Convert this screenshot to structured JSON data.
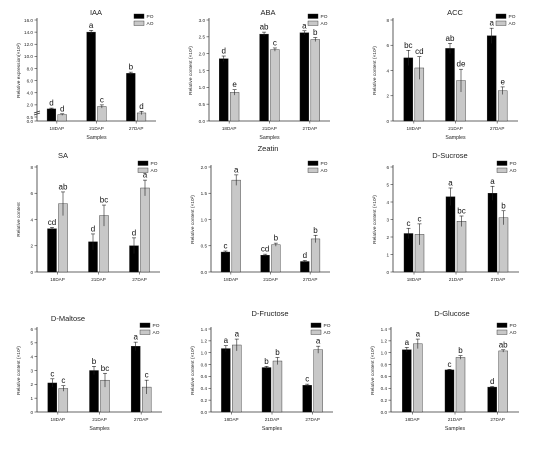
{
  "figure": {
    "series_names": [
      "PO",
      "AO"
    ],
    "series_colors": [
      "#000000",
      "#c8c8c8"
    ],
    "categories": [
      "18DAP",
      "21DAP",
      "27DAP"
    ]
  },
  "chart_data": [
    {
      "type": "bar",
      "title": "IAA",
      "xlabel": "Samples",
      "ylabel": "Relative expression(×10²)",
      "categories": [
        "18DAP",
        "21DAP",
        "27DAP"
      ],
      "yticks": [
        "0.0",
        "0.5",
        "2.0",
        "4.0",
        "6.0",
        "8.0",
        "10.0",
        "12.0",
        "14.0",
        "16.0"
      ],
      "tick_values": [
        0,
        0.5,
        2,
        4,
        6,
        8,
        10,
        12,
        14,
        16
      ],
      "axis_break": true,
      "ylim": [
        0,
        16
      ],
      "legend": "top-right",
      "series": [
        {
          "name": "PO",
          "values": [
            1.5,
            14.0,
            7.2
          ],
          "errors": [
            0.1,
            0.3,
            0.2
          ],
          "letters": [
            "d",
            "a",
            "b"
          ]
        },
        {
          "name": "AO",
          "values": [
            0.8,
            1.8,
            1.0
          ],
          "errors": [
            0.1,
            0.2,
            0.2
          ],
          "letters": [
            "d",
            "c",
            "d"
          ]
        }
      ]
    },
    {
      "type": "bar",
      "title": "ABA",
      "xlabel": "Samples",
      "ylabel": "Relative content (×10²)",
      "categories": [
        "18DAP",
        "21DAP",
        "27DAP"
      ],
      "yticks": [
        "0.0",
        "0.5",
        "1.0",
        "1.5",
        "2.0",
        "2.5",
        "3.0"
      ],
      "tick_values": [
        0,
        0.5,
        1,
        1.5,
        2,
        2.5,
        3
      ],
      "ylim": [
        0,
        3
      ],
      "legend": "top-right",
      "series": [
        {
          "name": "PO",
          "values": [
            1.85,
            2.58,
            2.62
          ],
          "errors": [
            0.08,
            0.06,
            0.06
          ],
          "letters": [
            "d",
            "ab",
            "a"
          ]
        },
        {
          "name": "AO",
          "values": [
            0.85,
            2.12,
            2.42
          ],
          "errors": [
            0.08,
            0.05,
            0.06
          ],
          "letters": [
            "e",
            "c",
            "b"
          ]
        }
      ]
    },
    {
      "type": "bar",
      "title": "ACC",
      "xlabel": "Samples",
      "ylabel": "Relative content (×10²)",
      "categories": [
        "18DAP",
        "21DAP",
        "27DAP"
      ],
      "yticks": [
        "0",
        "2",
        "4",
        "6",
        "8"
      ],
      "tick_values": [
        0,
        2,
        4,
        6,
        8
      ],
      "ylim": [
        0,
        8
      ],
      "legend": "top-right",
      "series": [
        {
          "name": "PO",
          "values": [
            5.0,
            5.75,
            6.75
          ],
          "errors": [
            0.6,
            0.4,
            0.6
          ],
          "letters": [
            "bc",
            "ab",
            "a"
          ]
        },
        {
          "name": "AO",
          "values": [
            4.2,
            3.2,
            2.4
          ],
          "errors": [
            0.9,
            0.9,
            0.3
          ],
          "letters": [
            "cd",
            "de",
            "e"
          ]
        }
      ]
    },
    {
      "type": "bar",
      "title": "SA",
      "xlabel": "",
      "ylabel": "Relative content",
      "categories": [
        "18DAP",
        "21DAP",
        "27DAP"
      ],
      "yticks": [
        "0",
        "2",
        "4",
        "6",
        "8"
      ],
      "tick_values": [
        0,
        2,
        4,
        6,
        8
      ],
      "ylim": [
        0,
        8
      ],
      "legend": "top-right",
      "series": [
        {
          "name": "PO",
          "values": [
            3.3,
            2.3,
            2.0
          ],
          "errors": [
            0.1,
            0.6,
            0.6
          ],
          "letters": [
            "cd",
            "d",
            "d"
          ]
        },
        {
          "name": "AO",
          "values": [
            5.2,
            4.3,
            6.4
          ],
          "errors": [
            0.9,
            0.8,
            0.6
          ],
          "letters": [
            "ab",
            "bc",
            "a"
          ]
        }
      ]
    },
    {
      "type": "bar",
      "title": "Zeatin",
      "xlabel": "",
      "ylabel": "Relative content (×10²)",
      "categories": [
        "18DAP",
        "21DAP",
        "27DAP"
      ],
      "yticks": [
        "0.0",
        "0.5",
        "1.0",
        "1.5",
        "2.0"
      ],
      "tick_values": [
        0,
        0.5,
        1,
        1.5,
        2
      ],
      "ylim": [
        0,
        2
      ],
      "legend": "top-right",
      "series": [
        {
          "name": "PO",
          "values": [
            0.38,
            0.32,
            0.2
          ],
          "errors": [
            0.02,
            0.02,
            0.02
          ],
          "letters": [
            "c",
            "cd",
            "d"
          ]
        },
        {
          "name": "AO",
          "values": [
            1.75,
            0.52,
            0.63
          ],
          "errors": [
            0.1,
            0.03,
            0.07
          ],
          "letters": [
            "a",
            "b",
            "b"
          ]
        }
      ]
    },
    {
      "type": "bar",
      "title": "D-Sucrose",
      "xlabel": "",
      "ylabel": "Relative content (×10²)",
      "categories": [
        "18DAP",
        "21DAP",
        "27DAP"
      ],
      "yticks": [
        "0",
        "1",
        "2",
        "3",
        "4",
        "5",
        "6"
      ],
      "tick_values": [
        0,
        1,
        2,
        3,
        4,
        5,
        6
      ],
      "ylim": [
        0,
        6
      ],
      "legend": "top-right",
      "series": [
        {
          "name": "PO",
          "values": [
            2.2,
            4.3,
            4.5
          ],
          "errors": [
            0.3,
            0.5,
            0.4
          ],
          "letters": [
            "c",
            "a",
            "a"
          ]
        },
        {
          "name": "AO",
          "values": [
            2.15,
            2.9,
            3.1
          ],
          "errors": [
            0.6,
            0.3,
            0.4
          ],
          "letters": [
            "c",
            "bc",
            "b"
          ]
        }
      ]
    },
    {
      "type": "bar",
      "title": "D-Maltose",
      "xlabel": "Samples",
      "ylabel": "Relative content (×10²)",
      "categories": [
        "18DAP",
        "21DAP",
        "27DAP"
      ],
      "yticks": [
        "0",
        "1",
        "2",
        "3",
        "4",
        "5",
        "6"
      ],
      "tick_values": [
        0,
        1,
        2,
        3,
        4,
        5,
        6
      ],
      "ylim": [
        0,
        6
      ],
      "legend": "top-right",
      "series": [
        {
          "name": "PO",
          "values": [
            2.1,
            3.0,
            4.75
          ],
          "errors": [
            0.3,
            0.3,
            0.3
          ],
          "letters": [
            "c",
            "b",
            "a"
          ]
        },
        {
          "name": "AO",
          "values": [
            1.7,
            2.3,
            1.8
          ],
          "errors": [
            0.2,
            0.5,
            0.5
          ],
          "letters": [
            "c",
            "bc",
            "c"
          ]
        }
      ]
    },
    {
      "type": "bar",
      "title": "D-Fructose",
      "xlabel": "Samples",
      "ylabel": "Relative content (×10²)",
      "categories": [
        "18DAP",
        "21DAP",
        "27DAP"
      ],
      "yticks": [
        "0.0",
        "0.2",
        "0.4",
        "0.6",
        "0.8",
        "1.0",
        "1.2",
        "1.4"
      ],
      "tick_values": [
        0,
        0.2,
        0.4,
        0.6,
        0.8,
        1,
        1.2,
        1.4
      ],
      "ylim": [
        0,
        1.4
      ],
      "legend": "top-right",
      "series": [
        {
          "name": "PO",
          "values": [
            1.07,
            0.75,
            0.45
          ],
          "errors": [
            0.05,
            0.02,
            0.02
          ],
          "letters": [
            "a",
            "b",
            "c"
          ]
        },
        {
          "name": "AO",
          "values": [
            1.13,
            0.86,
            1.05
          ],
          "errors": [
            0.1,
            0.06,
            0.06
          ],
          "letters": [
            "a",
            "b",
            "a"
          ]
        }
      ]
    },
    {
      "type": "bar",
      "title": "D-Glucose",
      "xlabel": "Samples",
      "ylabel": "Relative content (×10²)",
      "categories": [
        "18DAP",
        "21DAP",
        "27DAP"
      ],
      "yticks": [
        "0.0",
        "0.2",
        "0.4",
        "0.6",
        "0.8",
        "1.0",
        "1.2",
        "1.4"
      ],
      "tick_values": [
        0,
        0.2,
        0.4,
        0.6,
        0.8,
        1,
        1.2,
        1.4
      ],
      "ylim": [
        0,
        1.4
      ],
      "legend": "top-right",
      "series": [
        {
          "name": "PO",
          "values": [
            1.05,
            0.71,
            0.42
          ],
          "errors": [
            0.04,
            0.01,
            0.01
          ],
          "letters": [
            "a",
            "c",
            "d"
          ]
        },
        {
          "name": "AO",
          "values": [
            1.15,
            0.92,
            1.03
          ],
          "errors": [
            0.08,
            0.03,
            0.02
          ],
          "letters": [
            "a",
            "b",
            "ab"
          ]
        }
      ]
    }
  ]
}
